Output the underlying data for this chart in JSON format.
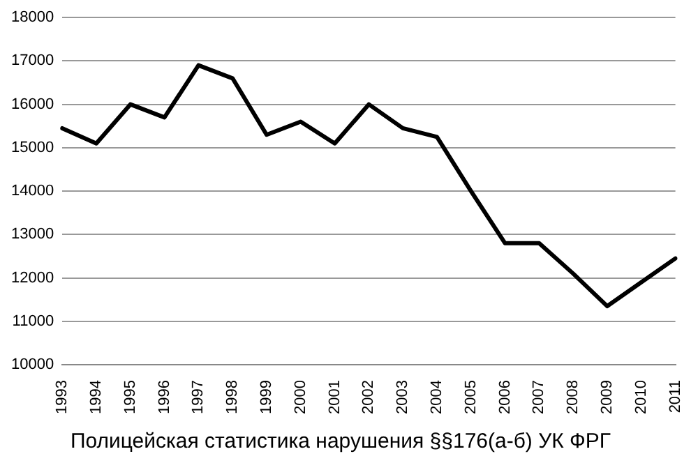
{
  "chart_data": {
    "type": "line",
    "title": "Полицейская статистика нарушения §§176(а-б) УК ФРГ",
    "categories": [
      "1993",
      "1994",
      "1995",
      "1996",
      "1997",
      "1998",
      "1999",
      "2000",
      "2001",
      "2002",
      "2003",
      "2004",
      "2005",
      "2006",
      "2007",
      "2008",
      "2009",
      "2010",
      "2011"
    ],
    "series": [
      {
        "color": "#000000",
        "values": [
          15450,
          15100,
          16000,
          15700,
          16900,
          16600,
          15300,
          15600,
          15100,
          16000,
          15450,
          15250,
          14000,
          12800,
          12800,
          12100,
          11350,
          11900,
          12450
        ]
      }
    ],
    "ylim": [
      10000,
      18000
    ],
    "yticks": [
      10000,
      11000,
      12000,
      13000,
      14000,
      15000,
      16000,
      17000,
      18000
    ],
    "grid": "y",
    "legend": false,
    "marker": "none",
    "line_style": "solid"
  }
}
